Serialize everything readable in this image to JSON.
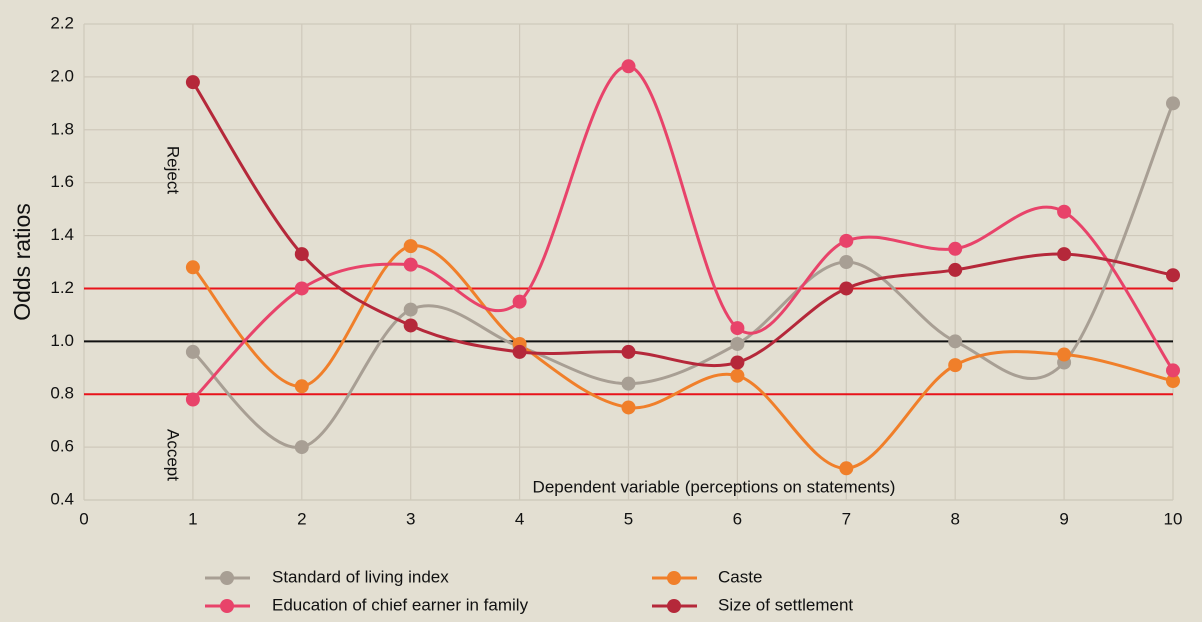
{
  "chart_data": {
    "type": "line",
    "y_label": "Odds ratios",
    "x_label": "Dependent variable (perceptions on statements)",
    "annotations": [
      {
        "text": "Reject"
      },
      {
        "text": "Accept"
      }
    ],
    "x": [
      1,
      2,
      3,
      4,
      5,
      6,
      7,
      8,
      9,
      10
    ],
    "xlim": [
      0,
      10
    ],
    "xticks": [
      0,
      1,
      2,
      3,
      4,
      5,
      6,
      7,
      8,
      9,
      10
    ],
    "ylim": [
      0.4,
      2.2
    ],
    "yticks": [
      0.4,
      0.6,
      0.8,
      {
        "value": 1.0,
        "label": "1.0"
      },
      1.2,
      1.4,
      1.6,
      1.8,
      {
        "value": 2.0,
        "label": "2.0"
      },
      2.2
    ],
    "grid": true,
    "smooth": true,
    "reference_lines": [
      {
        "value": 1.2,
        "color": "#e8131b"
      },
      {
        "value": 1.0,
        "color": "#111111"
      },
      {
        "value": 0.8,
        "color": "#e8131b"
      }
    ],
    "legend": "bottom",
    "series": [
      {
        "name": "Standard of living index",
        "color": "#a89f94",
        "values": [
          0.96,
          0.6,
          1.12,
          0.98,
          0.84,
          0.99,
          1.3,
          1.0,
          0.92,
          1.9
        ]
      },
      {
        "name": "Caste",
        "color": "#f07f2a",
        "values": [
          1.28,
          0.83,
          1.36,
          0.99,
          0.75,
          0.87,
          0.52,
          0.91,
          0.95,
          0.85
        ]
      },
      {
        "name": "Education of chief earner in family",
        "color": "#e8436a",
        "values": [
          0.78,
          1.2,
          1.29,
          1.15,
          2.04,
          1.05,
          1.38,
          1.35,
          1.49,
          0.89
        ]
      },
      {
        "name": "Size of settlement",
        "color": "#b5283a",
        "values": [
          1.98,
          1.33,
          1.06,
          0.96,
          0.96,
          0.92,
          1.2,
          1.27,
          1.33,
          1.25
        ]
      }
    ]
  }
}
